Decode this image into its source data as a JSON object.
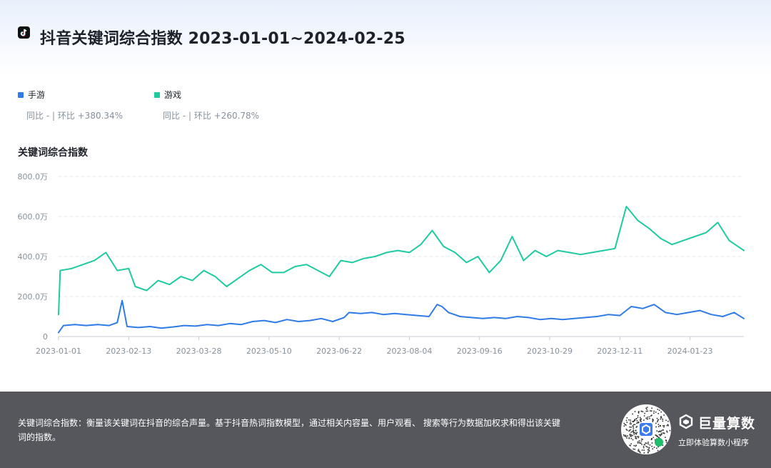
{
  "header": {
    "icon": "douyin-logo-icon",
    "title": "抖音关键词综合指数 2023-01-01~2024-02-25"
  },
  "legend": [
    {
      "name": "手游",
      "color": "#2f7be8",
      "stat": "同比 - | 环比 +380.34%"
    },
    {
      "name": "游戏",
      "color": "#1ecaa0",
      "stat": "同比 - | 环比 +260.78%"
    }
  ],
  "chart_title": "关键词综合指数",
  "chart_data": {
    "type": "line",
    "ylim": [
      0,
      8000000
    ],
    "y_ticks": [
      {
        "value": 0,
        "label": "0"
      },
      {
        "value": 2000000,
        "label": "200.0万"
      },
      {
        "value": 4000000,
        "label": "400.0万"
      },
      {
        "value": 6000000,
        "label": "600.0万"
      },
      {
        "value": 8000000,
        "label": "800.0万"
      }
    ],
    "x_start": "2023-01-01",
    "x_end": "2024-02-25",
    "x_ticks": [
      "2023-01-01",
      "2023-02-13",
      "2023-03-28",
      "2023-05-10",
      "2023-06-22",
      "2023-08-04",
      "2023-09-16",
      "2023-10-29",
      "2023-12-11",
      "2024-01-23"
    ],
    "grid": "horizontal-dashed",
    "legend_position": "top-left",
    "series": [
      {
        "name": "手游",
        "color": "#2f7be8",
        "points": [
          [
            "2023-01-01",
            20
          ],
          [
            "2023-01-04",
            55
          ],
          [
            "2023-01-11",
            60
          ],
          [
            "2023-01-18",
            55
          ],
          [
            "2023-01-25",
            60
          ],
          [
            "2023-02-01",
            55
          ],
          [
            "2023-02-06",
            70
          ],
          [
            "2023-02-09",
            180
          ],
          [
            "2023-02-12",
            50
          ],
          [
            "2023-02-19",
            45
          ],
          [
            "2023-02-26",
            50
          ],
          [
            "2023-03-05",
            42
          ],
          [
            "2023-03-12",
            48
          ],
          [
            "2023-03-19",
            55
          ],
          [
            "2023-03-26",
            52
          ],
          [
            "2023-04-02",
            60
          ],
          [
            "2023-04-09",
            55
          ],
          [
            "2023-04-16",
            65
          ],
          [
            "2023-04-23",
            60
          ],
          [
            "2023-04-30",
            75
          ],
          [
            "2023-05-07",
            80
          ],
          [
            "2023-05-14",
            70
          ],
          [
            "2023-05-21",
            85
          ],
          [
            "2023-05-28",
            75
          ],
          [
            "2023-06-04",
            80
          ],
          [
            "2023-06-11",
            90
          ],
          [
            "2023-06-18",
            75
          ],
          [
            "2023-06-25",
            95
          ],
          [
            "2023-06-28",
            120
          ],
          [
            "2023-07-05",
            115
          ],
          [
            "2023-07-12",
            120
          ],
          [
            "2023-07-19",
            110
          ],
          [
            "2023-07-26",
            115
          ],
          [
            "2023-08-02",
            110
          ],
          [
            "2023-08-09",
            105
          ],
          [
            "2023-08-16",
            100
          ],
          [
            "2023-08-21",
            160
          ],
          [
            "2023-08-24",
            150
          ],
          [
            "2023-08-28",
            120
          ],
          [
            "2023-09-04",
            100
          ],
          [
            "2023-09-11",
            95
          ],
          [
            "2023-09-18",
            90
          ],
          [
            "2023-09-25",
            95
          ],
          [
            "2023-10-02",
            90
          ],
          [
            "2023-10-09",
            100
          ],
          [
            "2023-10-16",
            95
          ],
          [
            "2023-10-23",
            85
          ],
          [
            "2023-10-30",
            90
          ],
          [
            "2023-11-06",
            85
          ],
          [
            "2023-11-13",
            90
          ],
          [
            "2023-11-20",
            95
          ],
          [
            "2023-11-27",
            100
          ],
          [
            "2023-12-04",
            110
          ],
          [
            "2023-12-11",
            105
          ],
          [
            "2023-12-18",
            150
          ],
          [
            "2023-12-25",
            140
          ],
          [
            "2024-01-01",
            160
          ],
          [
            "2024-01-08",
            120
          ],
          [
            "2024-01-15",
            110
          ],
          [
            "2024-01-22",
            120
          ],
          [
            "2024-01-29",
            130
          ],
          [
            "2024-02-05",
            110
          ],
          [
            "2024-02-12",
            100
          ],
          [
            "2024-02-19",
            120
          ],
          [
            "2024-02-25",
            90
          ]
        ]
      },
      {
        "name": "游戏",
        "color": "#1ecaa0",
        "points": [
          [
            "2023-01-01",
            110
          ],
          [
            "2023-01-02",
            330
          ],
          [
            "2023-01-09",
            340
          ],
          [
            "2023-01-16",
            360
          ],
          [
            "2023-01-23",
            380
          ],
          [
            "2023-01-30",
            420
          ],
          [
            "2023-02-06",
            330
          ],
          [
            "2023-02-13",
            340
          ],
          [
            "2023-02-17",
            250
          ],
          [
            "2023-02-24",
            230
          ],
          [
            "2023-03-03",
            280
          ],
          [
            "2023-03-10",
            260
          ],
          [
            "2023-03-17",
            300
          ],
          [
            "2023-03-24",
            280
          ],
          [
            "2023-03-31",
            330
          ],
          [
            "2023-04-07",
            300
          ],
          [
            "2023-04-14",
            250
          ],
          [
            "2023-04-21",
            290
          ],
          [
            "2023-04-28",
            330
          ],
          [
            "2023-05-05",
            360
          ],
          [
            "2023-05-12",
            320
          ],
          [
            "2023-05-19",
            320
          ],
          [
            "2023-05-26",
            350
          ],
          [
            "2023-06-02",
            360
          ],
          [
            "2023-06-09",
            330
          ],
          [
            "2023-06-16",
            300
          ],
          [
            "2023-06-23",
            380
          ],
          [
            "2023-06-30",
            370
          ],
          [
            "2023-07-07",
            390
          ],
          [
            "2023-07-14",
            400
          ],
          [
            "2023-07-21",
            420
          ],
          [
            "2023-07-28",
            430
          ],
          [
            "2023-08-04",
            420
          ],
          [
            "2023-08-11",
            460
          ],
          [
            "2023-08-18",
            530
          ],
          [
            "2023-08-25",
            450
          ],
          [
            "2023-09-01",
            420
          ],
          [
            "2023-09-08",
            370
          ],
          [
            "2023-09-15",
            400
          ],
          [
            "2023-09-22",
            320
          ],
          [
            "2023-09-29",
            380
          ],
          [
            "2023-10-06",
            500
          ],
          [
            "2023-10-13",
            380
          ],
          [
            "2023-10-20",
            430
          ],
          [
            "2023-10-27",
            400
          ],
          [
            "2023-11-03",
            430
          ],
          [
            "2023-11-10",
            420
          ],
          [
            "2023-11-17",
            410
          ],
          [
            "2023-11-24",
            420
          ],
          [
            "2023-12-01",
            430
          ],
          [
            "2023-12-08",
            440
          ],
          [
            "2023-12-15",
            650
          ],
          [
            "2023-12-22",
            580
          ],
          [
            "2023-12-29",
            540
          ],
          [
            "2024-01-05",
            490
          ],
          [
            "2024-01-12",
            460
          ],
          [
            "2024-01-19",
            480
          ],
          [
            "2024-01-26",
            500
          ],
          [
            "2024-02-02",
            520
          ],
          [
            "2024-02-09",
            570
          ],
          [
            "2024-02-16",
            480
          ],
          [
            "2024-02-25",
            430
          ]
        ]
      }
    ]
  },
  "footer": {
    "description": "关键词综合指数：衡量该关键词在抖音的综合声量。基于抖音热词指数模型，通过相关内容量、用户观看、 搜索等行为数据加权求和得出该关键词的指数。",
    "qr_icon": "mini-program-qr-code-icon",
    "brand_icon": "juliang-suanshu-logo-icon",
    "brand_name": "巨量算数",
    "brand_sub": "立即体验算数小程序"
  }
}
